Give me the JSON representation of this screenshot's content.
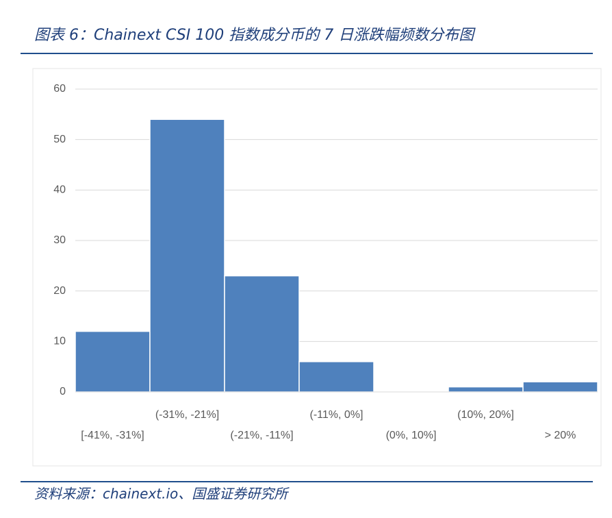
{
  "chart_data": {
    "type": "bar",
    "title": "图表 6：Chainext CSI 100 指数成分币的 7 日涨跌幅频数分布图",
    "source": "资料来源：chainext.io、国盛证券研究所",
    "categories": [
      "[-41%, -31%]",
      "(-31%, -21%]",
      "(-21%, -11%]",
      "(-11%, 0%]",
      "(0%, 10%]",
      "(10%, 20%]",
      "> 20%"
    ],
    "values": [
      12,
      54,
      23,
      6,
      0,
      1,
      2
    ],
    "color": "#4f81bd",
    "ylim": [
      0,
      60
    ],
    "yticks": [
      0,
      10,
      20,
      30,
      40,
      50,
      60
    ],
    "grid": true
  }
}
